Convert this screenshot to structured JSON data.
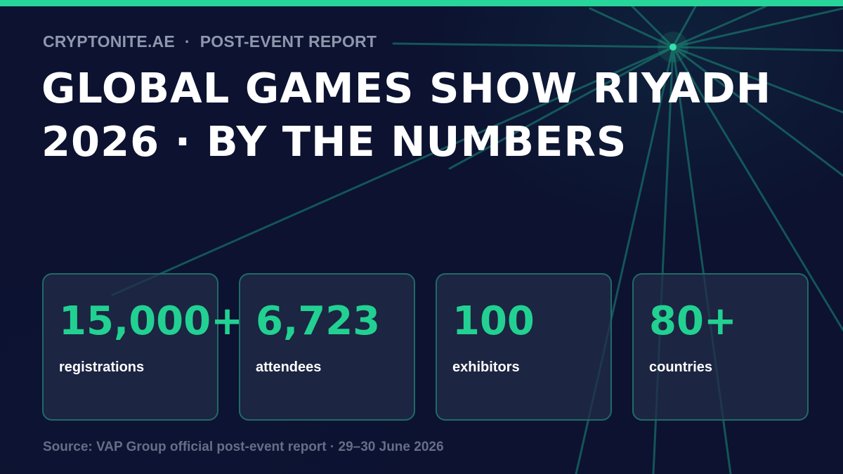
{
  "header": {
    "publisher": "CRYPTONITE.AE",
    "separator": "·",
    "section": "POST-EVENT REPORT",
    "title_line1": "GLOBAL GAMES SHOW RIYADH",
    "title_line2": "2026 · BY THE NUMBERS"
  },
  "stats": [
    {
      "value": "15,000+",
      "label": "registrations"
    },
    {
      "value": "6,723",
      "label": "attendees"
    },
    {
      "value": "100",
      "label": "exhibitors"
    },
    {
      "value": "80+",
      "label": "countries"
    }
  ],
  "footer": {
    "source": "Source: VAP Group official post-event report · 29–30 June 2026"
  },
  "colors": {
    "background": "#0c1230",
    "accent": "#27d49a",
    "stat_value": "#22d192",
    "card_border": "#1f6b67",
    "muted_text": "#8f97ad"
  }
}
